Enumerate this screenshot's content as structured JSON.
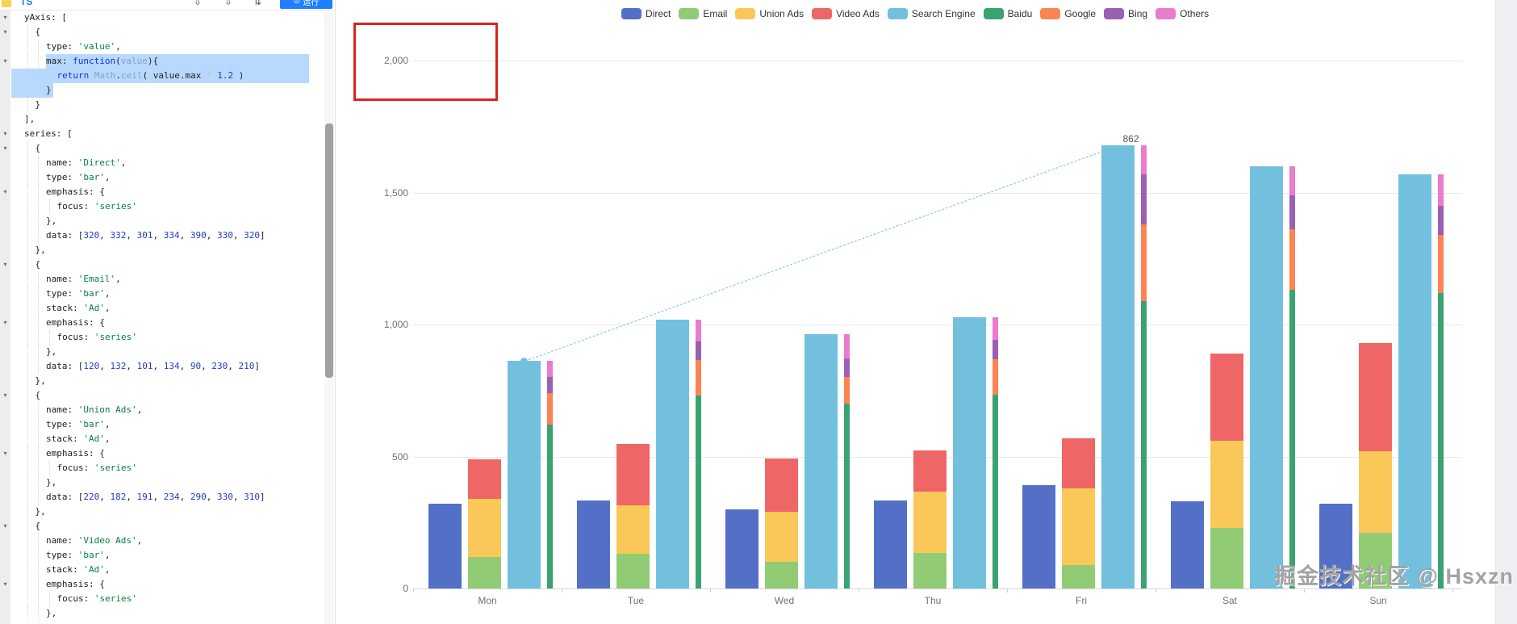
{
  "editor": {
    "toolbar": {
      "file_label": "TS",
      "run_label": "运行",
      "run_icon_glyph": "⊙",
      "icons": [
        {
          "name": "download-icon",
          "glyph": "⇩"
        },
        {
          "name": "download-icon-2",
          "glyph": "⇩"
        },
        {
          "name": "adjust-icon",
          "glyph": "⇅"
        }
      ]
    },
    "lines": [
      {
        "l": 0,
        "f": true,
        "t": [
          [
            "yAxis: [",
            "p"
          ]
        ]
      },
      {
        "l": 1,
        "f": true,
        "t": [
          [
            "{",
            "p"
          ]
        ]
      },
      {
        "l": 2,
        "t": [
          [
            "type: ",
            "p"
          ],
          [
            "'value'",
            "s"
          ],
          [
            ",",
            "p"
          ]
        ]
      },
      {
        "l": 2,
        "f": true,
        "sel": "s",
        "t": [
          [
            "max: ",
            "p"
          ],
          [
            "function",
            "k"
          ],
          [
            "(",
            "p"
          ],
          [
            "value",
            "b"
          ],
          [
            "){",
            "p"
          ]
        ]
      },
      {
        "l": 3,
        "sel": "m",
        "t": [
          [
            "return",
            "k"
          ],
          [
            " ",
            "p"
          ],
          [
            "Math",
            "b"
          ],
          [
            ".",
            "p"
          ],
          [
            "ceil",
            "b"
          ],
          [
            "( value.max ",
            "p"
          ],
          [
            "*",
            "o"
          ],
          [
            " ",
            "p"
          ],
          [
            "1.2",
            "n"
          ],
          [
            " )",
            "p"
          ]
        ]
      },
      {
        "l": 2,
        "sel": "e",
        "t": [
          [
            "}",
            "p"
          ]
        ]
      },
      {
        "l": 1,
        "t": [
          [
            "}",
            "p"
          ]
        ]
      },
      {
        "l": 0,
        "t": [
          [
            "],",
            "p"
          ]
        ]
      },
      {
        "l": 0,
        "f": true,
        "t": [
          [
            "series: [",
            "p"
          ]
        ]
      },
      {
        "l": 1,
        "f": true,
        "t": [
          [
            "{",
            "p"
          ]
        ]
      },
      {
        "l": 2,
        "t": [
          [
            "name: ",
            "p"
          ],
          [
            "'Direct'",
            "s"
          ],
          [
            ",",
            "p"
          ]
        ]
      },
      {
        "l": 2,
        "t": [
          [
            "type: ",
            "p"
          ],
          [
            "'bar'",
            "s"
          ],
          [
            ",",
            "p"
          ]
        ]
      },
      {
        "l": 2,
        "f": true,
        "t": [
          [
            "emphasis: {",
            "p"
          ]
        ]
      },
      {
        "l": 3,
        "t": [
          [
            "focus: ",
            "p"
          ],
          [
            "'series'",
            "s"
          ]
        ]
      },
      {
        "l": 2,
        "t": [
          [
            "},",
            "p"
          ]
        ]
      },
      {
        "l": 2,
        "t": [
          [
            "data: [",
            "p"
          ],
          [
            "320",
            "n"
          ],
          [
            ", ",
            "p"
          ],
          [
            "332",
            "n"
          ],
          [
            ", ",
            "p"
          ],
          [
            "301",
            "n"
          ],
          [
            ", ",
            "p"
          ],
          [
            "334",
            "n"
          ],
          [
            ", ",
            "p"
          ],
          [
            "390",
            "n"
          ],
          [
            ", ",
            "p"
          ],
          [
            "330",
            "n"
          ],
          [
            ", ",
            "p"
          ],
          [
            "320",
            "n"
          ],
          [
            "]",
            "p"
          ]
        ]
      },
      {
        "l": 1,
        "t": [
          [
            "},",
            "p"
          ]
        ]
      },
      {
        "l": 1,
        "f": true,
        "t": [
          [
            "{",
            "p"
          ]
        ]
      },
      {
        "l": 2,
        "t": [
          [
            "name: ",
            "p"
          ],
          [
            "'Email'",
            "s"
          ],
          [
            ",",
            "p"
          ]
        ]
      },
      {
        "l": 2,
        "t": [
          [
            "type: ",
            "p"
          ],
          [
            "'bar'",
            "s"
          ],
          [
            ",",
            "p"
          ]
        ]
      },
      {
        "l": 2,
        "t": [
          [
            "stack: ",
            "p"
          ],
          [
            "'Ad'",
            "s"
          ],
          [
            ",",
            "p"
          ]
        ]
      },
      {
        "l": 2,
        "f": true,
        "t": [
          [
            "emphasis: {",
            "p"
          ]
        ]
      },
      {
        "l": 3,
        "t": [
          [
            "focus: ",
            "p"
          ],
          [
            "'series'",
            "s"
          ]
        ]
      },
      {
        "l": 2,
        "t": [
          [
            "},",
            "p"
          ]
        ]
      },
      {
        "l": 2,
        "t": [
          [
            "data: [",
            "p"
          ],
          [
            "120",
            "n"
          ],
          [
            ", ",
            "p"
          ],
          [
            "132",
            "n"
          ],
          [
            ", ",
            "p"
          ],
          [
            "101",
            "n"
          ],
          [
            ", ",
            "p"
          ],
          [
            "134",
            "n"
          ],
          [
            ", ",
            "p"
          ],
          [
            "90",
            "n"
          ],
          [
            ", ",
            "p"
          ],
          [
            "230",
            "n"
          ],
          [
            ", ",
            "p"
          ],
          [
            "210",
            "n"
          ],
          [
            "]",
            "p"
          ]
        ]
      },
      {
        "l": 1,
        "t": [
          [
            "},",
            "p"
          ]
        ]
      },
      {
        "l": 1,
        "f": true,
        "t": [
          [
            "{",
            "p"
          ]
        ]
      },
      {
        "l": 2,
        "t": [
          [
            "name: ",
            "p"
          ],
          [
            "'Union Ads'",
            "s"
          ],
          [
            ",",
            "p"
          ]
        ]
      },
      {
        "l": 2,
        "t": [
          [
            "type: ",
            "p"
          ],
          [
            "'bar'",
            "s"
          ],
          [
            ",",
            "p"
          ]
        ]
      },
      {
        "l": 2,
        "t": [
          [
            "stack: ",
            "p"
          ],
          [
            "'Ad'",
            "s"
          ],
          [
            ",",
            "p"
          ]
        ]
      },
      {
        "l": 2,
        "f": true,
        "t": [
          [
            "emphasis: {",
            "p"
          ]
        ]
      },
      {
        "l": 3,
        "t": [
          [
            "focus: ",
            "p"
          ],
          [
            "'series'",
            "s"
          ]
        ]
      },
      {
        "l": 2,
        "t": [
          [
            "},",
            "p"
          ]
        ]
      },
      {
        "l": 2,
        "t": [
          [
            "data: [",
            "p"
          ],
          [
            "220",
            "n"
          ],
          [
            ", ",
            "p"
          ],
          [
            "182",
            "n"
          ],
          [
            ", ",
            "p"
          ],
          [
            "191",
            "n"
          ],
          [
            ", ",
            "p"
          ],
          [
            "234",
            "n"
          ],
          [
            ", ",
            "p"
          ],
          [
            "290",
            "n"
          ],
          [
            ", ",
            "p"
          ],
          [
            "330",
            "n"
          ],
          [
            ", ",
            "p"
          ],
          [
            "310",
            "n"
          ],
          [
            "]",
            "p"
          ]
        ]
      },
      {
        "l": 1,
        "t": [
          [
            "},",
            "p"
          ]
        ]
      },
      {
        "l": 1,
        "f": true,
        "t": [
          [
            "{",
            "p"
          ]
        ]
      },
      {
        "l": 2,
        "t": [
          [
            "name: ",
            "p"
          ],
          [
            "'Video Ads'",
            "s"
          ],
          [
            ",",
            "p"
          ]
        ]
      },
      {
        "l": 2,
        "t": [
          [
            "type: ",
            "p"
          ],
          [
            "'bar'",
            "s"
          ],
          [
            ",",
            "p"
          ]
        ]
      },
      {
        "l": 2,
        "t": [
          [
            "stack: ",
            "p"
          ],
          [
            "'Ad'",
            "s"
          ],
          [
            ",",
            "p"
          ]
        ]
      },
      {
        "l": 2,
        "f": true,
        "t": [
          [
            "emphasis: {",
            "p"
          ]
        ]
      },
      {
        "l": 3,
        "t": [
          [
            "focus: ",
            "p"
          ],
          [
            "'series'",
            "s"
          ]
        ]
      },
      {
        "l": 2,
        "t": [
          [
            "},",
            "p"
          ]
        ]
      }
    ]
  },
  "chart_data": {
    "type": "bar",
    "title": "",
    "xlabel": "",
    "ylabel": "",
    "grid": true,
    "legend_position": "top",
    "categories": [
      "Mon",
      "Tue",
      "Wed",
      "Thu",
      "Fri",
      "Sat",
      "Sun"
    ],
    "y_ticks": [
      "0",
      "500",
      "1,000",
      "1,500",
      "2,000"
    ],
    "y_tick_values": [
      0,
      500,
      1000,
      1500,
      2000
    ],
    "ylim": [
      0,
      2000
    ],
    "series": [
      {
        "name": "Direct",
        "color": "#5470c6",
        "stack": null,
        "values": [
          320,
          332,
          301,
          334,
          390,
          330,
          320
        ]
      },
      {
        "name": "Email",
        "color": "#91cc75",
        "stack": "Ad",
        "values": [
          120,
          132,
          101,
          134,
          90,
          230,
          210
        ]
      },
      {
        "name": "Union Ads",
        "color": "#fac858",
        "stack": "Ad",
        "values": [
          220,
          182,
          191,
          234,
          290,
          330,
          310
        ]
      },
      {
        "name": "Video Ads",
        "color": "#ee6666",
        "stack": "Ad",
        "values": [
          150,
          232,
          201,
          154,
          190,
          330,
          410
        ]
      },
      {
        "name": "Search Engine",
        "color": "#73c0de",
        "stack": null,
        "values": [
          862,
          1018,
          964,
          1026,
          1679,
          1600,
          1570
        ]
      },
      {
        "name": "Baidu",
        "color": "#3ba272",
        "stack": "Search Engine",
        "values": [
          620,
          732,
          701,
          734,
          1090,
          1130,
          1120
        ]
      },
      {
        "name": "Google",
        "color": "#fc8452",
        "stack": "Search Engine",
        "values": [
          120,
          132,
          101,
          134,
          290,
          230,
          220
        ]
      },
      {
        "name": "Bing",
        "color": "#9a60b4",
        "stack": "Search Engine",
        "values": [
          60,
          72,
          71,
          74,
          190,
          130,
          110
        ]
      },
      {
        "name": "Others",
        "color": "#ea7ccc",
        "stack": "Search Engine",
        "values": [
          62,
          82,
          91,
          84,
          109,
          110,
          120
        ]
      }
    ],
    "markline": {
      "style": "dashed",
      "from": {
        "category": "Mon",
        "value": 862
      },
      "to": {
        "category": "Fri",
        "value": 1679
      },
      "label": "862"
    }
  },
  "watermark": "掘金技术社区 @ Hsxzn"
}
